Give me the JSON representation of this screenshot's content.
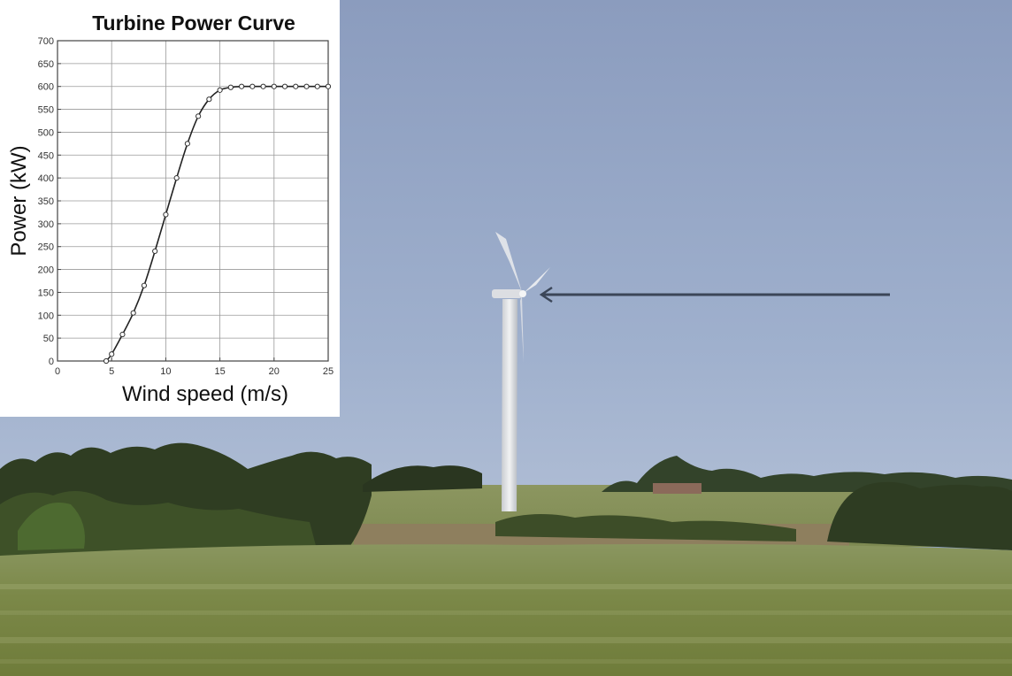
{
  "chart_data": {
    "type": "line",
    "title": "Turbine Power Curve",
    "xlabel": "Wind speed (m/s)",
    "ylabel": "Power (kW)",
    "xlim": [
      0,
      25
    ],
    "ylim": [
      0,
      700
    ],
    "xticks": [
      0,
      5,
      10,
      15,
      20,
      25
    ],
    "yticks": [
      0,
      50,
      100,
      150,
      200,
      250,
      300,
      350,
      400,
      450,
      500,
      550,
      600,
      650,
      700
    ],
    "grid": true,
    "series": [
      {
        "markers": "circle",
        "x": [
          4.5,
          5,
          6,
          7,
          8,
          9,
          10,
          11,
          12,
          13,
          14,
          15,
          16,
          17,
          18,
          19,
          20,
          21,
          22,
          23,
          24,
          25
        ],
        "y": [
          0,
          15,
          58,
          105,
          165,
          240,
          320,
          400,
          475,
          535,
          572,
          592,
          598,
          600,
          600,
          600,
          600,
          600,
          600,
          600,
          600,
          600
        ]
      }
    ]
  },
  "scene": {
    "sky_color": "#8fa1c0",
    "grass_color": "#7c8a4a",
    "tree_color": "#2c3a22",
    "arrow_color": "#3b4658"
  }
}
